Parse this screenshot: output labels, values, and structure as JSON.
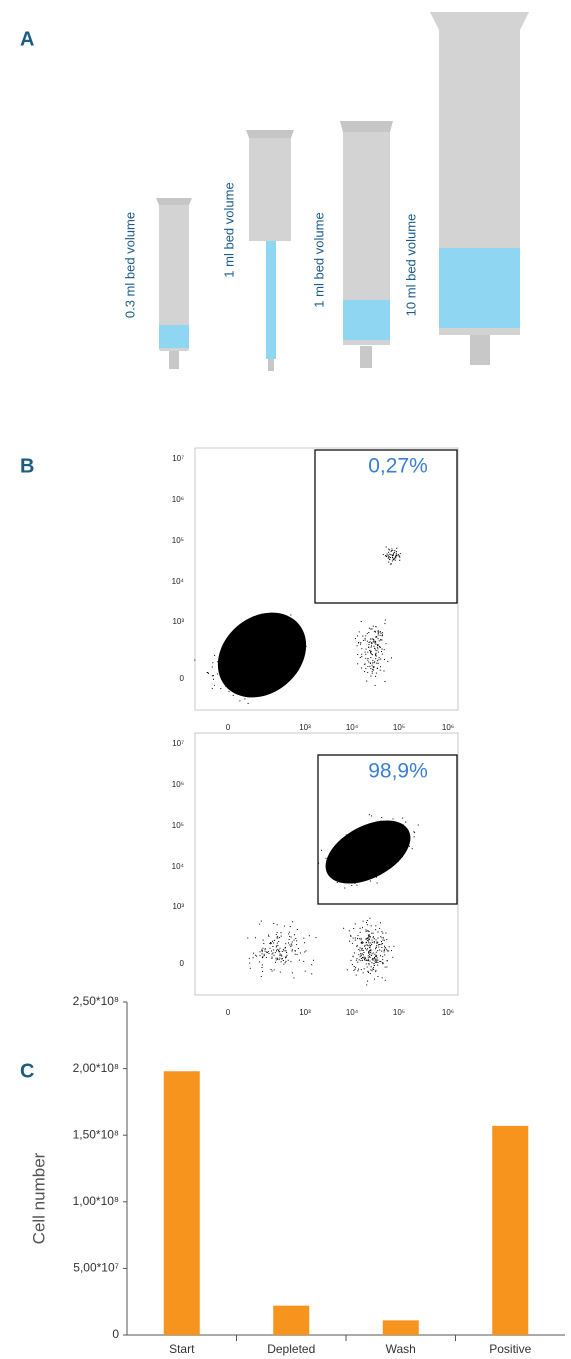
{
  "panel_labels": [
    "A",
    "B",
    "C"
  ],
  "columns": [
    "0.3 ml bed volume",
    "1 ml bed volume",
    "1 ml bed volume",
    "10 ml bed volume"
  ],
  "flow_axis": {
    "yticks": [
      "10⁷",
      "10⁶",
      "10⁵",
      "10⁴",
      "10³",
      "0"
    ],
    "xticks": [
      "0",
      "10³",
      "10⁴",
      "10⁵",
      "10⁶"
    ]
  },
  "flow_plots": [
    {
      "gate_percent": "0,27%"
    },
    {
      "gate_percent": "98,9%"
    }
  ],
  "chart_data": {
    "type": "bar",
    "y_label": "Cell number",
    "categories": [
      "Start",
      "Depleted",
      "Wash",
      "Positive"
    ],
    "values": [
      198000000,
      22000000,
      11000000,
      157000000
    ],
    "color": "#f7941d",
    "ylim": [
      0,
      250000000
    ],
    "yticks": [
      0,
      {
        "value": 50000000,
        "label": "5,00*10⁷"
      },
      {
        "value": 100000000,
        "label": "1,00*10⁸"
      },
      {
        "value": 150000000,
        "label": "1,50*10⁸"
      },
      {
        "value": 200000000,
        "label": "2,00*10⁸"
      },
      {
        "value": 250000000,
        "label": "2,50*10⁸"
      }
    ]
  }
}
